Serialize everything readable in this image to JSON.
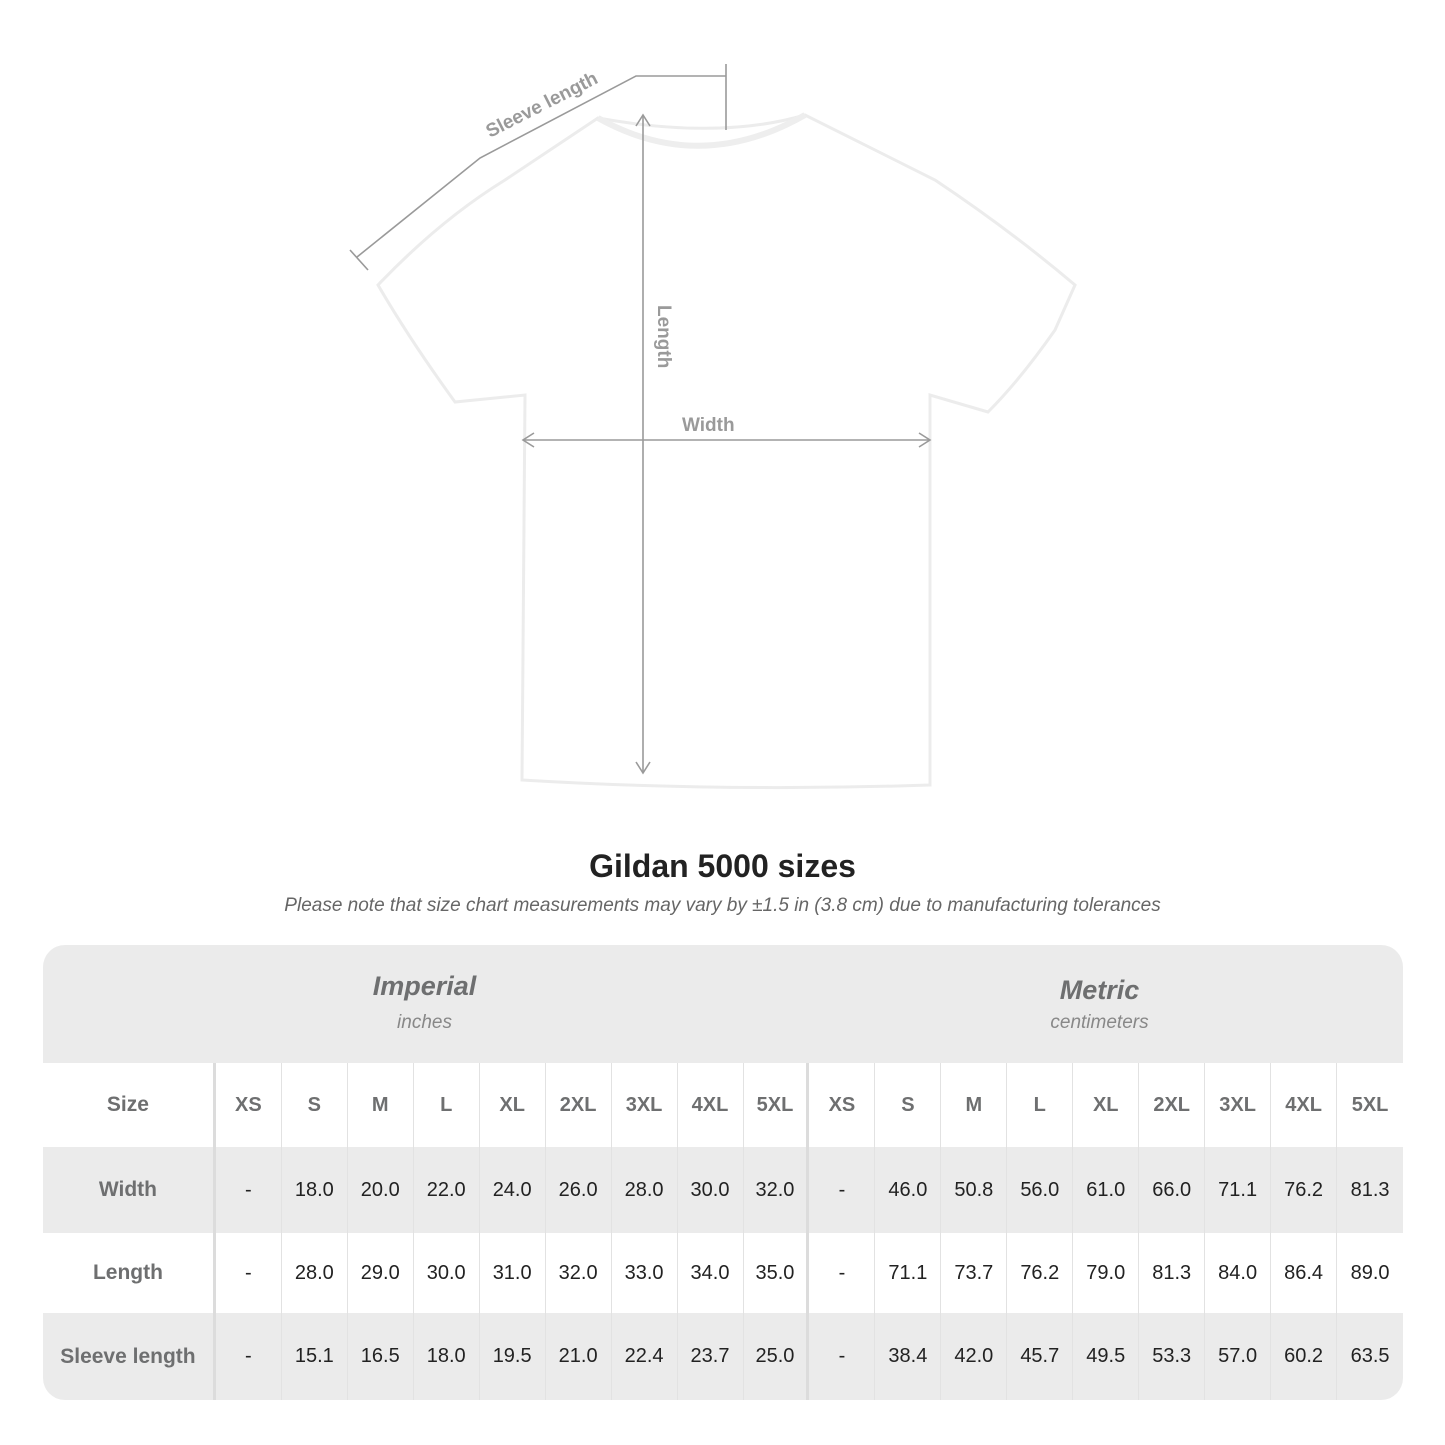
{
  "diagram": {
    "labels": {
      "sleeve": "Sleeve length",
      "length": "Length",
      "width": "Width"
    },
    "shirt_color": "#ffffff",
    "line_color": "#9a9a9a"
  },
  "title": "Gildan 5000 sizes",
  "subtitle": "Please note that size chart measurements may vary by ±1.5 in (3.8 cm) due to manufacturing tolerances",
  "imperial": {
    "title": "Imperial",
    "unit": "inches"
  },
  "metric": {
    "title": "Metric",
    "unit": "centimeters"
  },
  "table": {
    "size_label": "Size",
    "sizes": [
      "XS",
      "S",
      "M",
      "L",
      "XL",
      "2XL",
      "3XL",
      "4XL",
      "5XL"
    ],
    "rows": [
      {
        "label": "Width",
        "imperial": [
          "-",
          "18.0",
          "20.0",
          "22.0",
          "24.0",
          "26.0",
          "28.0",
          "30.0",
          "32.0"
        ],
        "metric": [
          "-",
          "46.0",
          "50.8",
          "56.0",
          "61.0",
          "66.0",
          "71.1",
          "76.2",
          "81.3"
        ]
      },
      {
        "label": "Length",
        "imperial": [
          "-",
          "28.0",
          "29.0",
          "30.0",
          "31.0",
          "32.0",
          "33.0",
          "34.0",
          "35.0"
        ],
        "metric": [
          "-",
          "71.1",
          "73.7",
          "76.2",
          "79.0",
          "81.3",
          "84.0",
          "86.4",
          "89.0"
        ]
      },
      {
        "label": "Sleeve length",
        "imperial": [
          "-",
          "15.1",
          "16.5",
          "18.0",
          "19.5",
          "21.0",
          "22.4",
          "23.7",
          "25.0"
        ],
        "metric": [
          "-",
          "38.4",
          "42.0",
          "45.7",
          "49.5",
          "53.3",
          "57.0",
          "60.2",
          "63.5"
        ]
      }
    ]
  }
}
